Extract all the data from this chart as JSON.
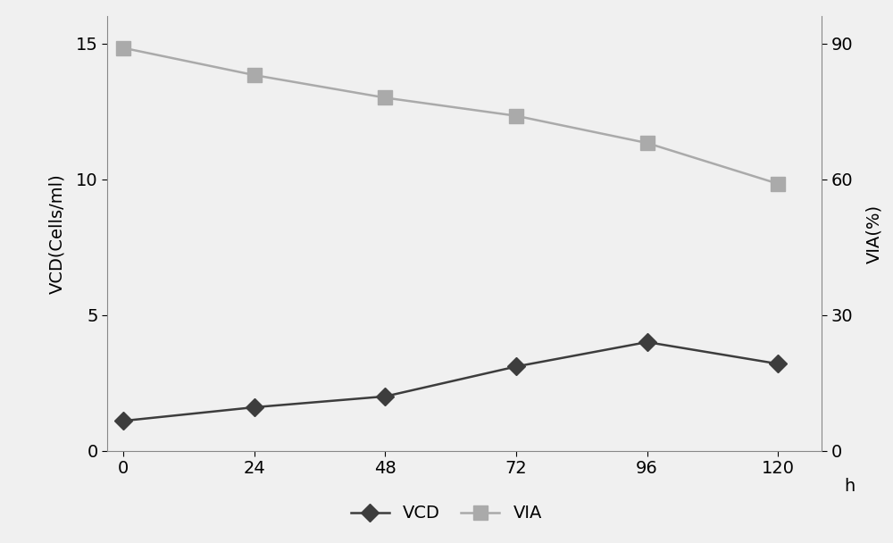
{
  "x": [
    0,
    24,
    48,
    72,
    96,
    120
  ],
  "vcd": [
    1.1,
    1.6,
    2.0,
    3.1,
    4.0,
    3.2
  ],
  "via": [
    89,
    83,
    78,
    74,
    68,
    59
  ],
  "vcd_color": "#3d3d3d",
  "via_color": "#aaaaaa",
  "vcd_label": "VCD",
  "via_label": "VIA",
  "xlabel": "h",
  "ylabel_left": "VCD(Cells/ml)",
  "ylabel_right": "VIA(%)",
  "xlim": [
    -3,
    128
  ],
  "ylim_left": [
    0,
    16
  ],
  "ylim_right": [
    0,
    96
  ],
  "yticks_left": [
    0,
    5,
    10,
    15
  ],
  "yticks_right": [
    0,
    30,
    60,
    90
  ],
  "xticks": [
    0,
    24,
    48,
    72,
    96,
    120
  ],
  "linewidth": 1.8,
  "marker_vcd": "D",
  "marker_via": "s",
  "markersize_vcd": 10,
  "markersize_via": 11,
  "background_color": "#f0f0f0",
  "legend_fontsize": 14,
  "axis_label_fontsize": 14,
  "tick_fontsize": 14
}
